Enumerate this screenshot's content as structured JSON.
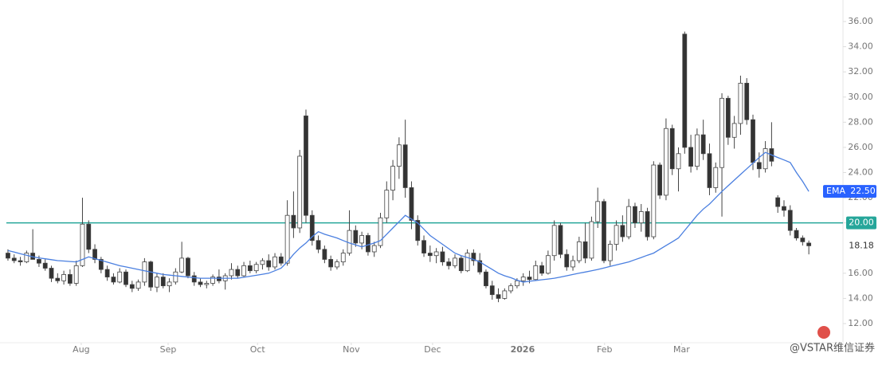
{
  "chart_data": {
    "type": "candlestick",
    "open": [
      17.6,
      17.2,
      17.0,
      16.9,
      17.6,
      17.1,
      16.8,
      16.4,
      15.6,
      15.4,
      15.9,
      15.2,
      16.6,
      19.9,
      17.9,
      17.1,
      16.3,
      15.7,
      15.3,
      16.1,
      15.1,
      14.8,
      15.3,
      16.9,
      14.9,
      15.7,
      15.0,
      15.3,
      16.1,
      17.2,
      15.8,
      15.3,
      15.1,
      15.2,
      15.7,
      15.4,
      15.8,
      16.3,
      15.8,
      16.6,
      16.2,
      16.7,
      17.0,
      16.5,
      17.3,
      16.8,
      20.6,
      19.6,
      28.5,
      20.6,
      18.6,
      17.9,
      17.1,
      16.5,
      16.9,
      17.6,
      19.4,
      18.4,
      19.0,
      17.7,
      18.2,
      20.4,
      22.6,
      24.5,
      26.2,
      22.8,
      20.2,
      18.6,
      17.6,
      17.4,
      17.7,
      16.9,
      16.6,
      17.2,
      16.2,
      17.6,
      17.0,
      16.1,
      15.0,
      14.3,
      14.0,
      14.6,
      15.0,
      15.4,
      15.7,
      15.5,
      16.6,
      16.0,
      17.4,
      19.8,
      17.5,
      16.5,
      17.0,
      18.5,
      17.2,
      20.1,
      21.7,
      17.0,
      18.3,
      19.8,
      18.9,
      21.3,
      20.0,
      20.9,
      18.9,
      24.6,
      22.2,
      27.5,
      24.3,
      35.0,
      26.0,
      24.5,
      27.0,
      25.5,
      22.8,
      24.4,
      29.9,
      26.8,
      27.9,
      31.1,
      28.2,
      24.8,
      24.3,
      25.9,
      22.0,
      21.3,
      21.0,
      19.4,
      18.8,
      18.4
    ],
    "high": [
      17.9,
      17.5,
      17.3,
      17.8,
      19.5,
      17.4,
      17.1,
      16.6,
      16.0,
      16.2,
      16.3,
      17.0,
      22.0,
      20.2,
      18.3,
      17.3,
      16.6,
      16.0,
      16.4,
      16.3,
      15.4,
      15.5,
      17.2,
      17.0,
      16.0,
      16.0,
      15.6,
      16.4,
      18.5,
      17.3,
      16.1,
      15.6,
      15.4,
      15.9,
      16.3,
      16.0,
      16.8,
      16.6,
      16.9,
      17.0,
      16.9,
      17.2,
      17.5,
      17.6,
      17.6,
      21.8,
      22.5,
      25.8,
      29.0,
      21.0,
      19.0,
      18.2,
      17.4,
      17.1,
      17.9,
      21.0,
      19.8,
      19.3,
      19.2,
      18.5,
      20.8,
      23.3,
      25.0,
      26.8,
      28.2,
      23.3,
      20.6,
      19.0,
      18.2,
      18.0,
      18.1,
      17.2,
      17.5,
      17.4,
      17.9,
      17.9,
      17.6,
      16.3,
      15.4,
      14.8,
      14.8,
      15.2,
      15.6,
      16.0,
      16.2,
      17.0,
      16.9,
      17.8,
      20.2,
      20.0,
      17.9,
      17.4,
      18.9,
      20.0,
      20.5,
      22.8,
      21.9,
      18.6,
      20.2,
      20.6,
      21.9,
      21.6,
      21.5,
      21.2,
      24.9,
      24.8,
      28.3,
      27.8,
      26.0,
      35.2,
      27.0,
      27.5,
      28.2,
      26.3,
      24.8,
      30.3,
      30.1,
      28.5,
      31.7,
      31.5,
      28.6,
      25.6,
      26.5,
      28.0,
      22.2,
      21.8,
      21.4,
      19.6,
      19.0,
      18.6
    ],
    "low": [
      17.0,
      16.8,
      16.6,
      16.8,
      17.3,
      16.5,
      16.2,
      15.3,
      15.2,
      15.1,
      15.0,
      15.0,
      16.5,
      17.6,
      16.8,
      16.0,
      15.4,
      15.1,
      15.2,
      14.9,
      14.5,
      14.6,
      15.0,
      14.6,
      14.5,
      14.8,
      14.5,
      15.1,
      16.0,
      15.6,
      15.0,
      14.9,
      14.8,
      15.0,
      15.2,
      14.7,
      15.5,
      15.6,
      15.7,
      16.0,
      16.0,
      16.3,
      16.2,
      16.3,
      16.6,
      16.6,
      18.8,
      19.2,
      20.0,
      18.2,
      17.6,
      16.8,
      16.2,
      16.3,
      16.6,
      17.4,
      18.1,
      17.9,
      17.4,
      17.3,
      18.0,
      20.0,
      21.8,
      23.5,
      22.0,
      19.5,
      18.2,
      17.3,
      16.9,
      16.8,
      16.6,
      16.3,
      16.4,
      16.0,
      16.1,
      16.6,
      15.9,
      14.8,
      13.9,
      13.7,
      13.9,
      14.4,
      14.8,
      15.0,
      15.2,
      15.4,
      15.8,
      15.9,
      17.0,
      17.2,
      16.2,
      16.2,
      16.8,
      16.8,
      17.0,
      19.6,
      16.8,
      16.6,
      17.8,
      18.5,
      18.7,
      19.6,
      19.3,
      18.6,
      18.7,
      21.9,
      21.8,
      23.8,
      22.5,
      25.5,
      24.0,
      24.2,
      25.0,
      22.2,
      22.4,
      20.5,
      26.2,
      25.9,
      27.0,
      27.8,
      24.2,
      23.6,
      24.0,
      24.5,
      20.8,
      20.5,
      19.0,
      18.6,
      18.2,
      17.5
    ],
    "close": [
      17.2,
      17.0,
      16.9,
      17.6,
      17.1,
      16.8,
      16.4,
      15.6,
      15.4,
      15.9,
      15.2,
      16.6,
      19.9,
      17.9,
      17.1,
      16.3,
      15.7,
      15.3,
      16.1,
      15.1,
      14.8,
      15.3,
      16.9,
      14.9,
      15.7,
      15.0,
      15.3,
      16.1,
      17.2,
      15.8,
      15.3,
      15.1,
      15.2,
      15.7,
      15.4,
      15.8,
      16.3,
      15.8,
      16.6,
      16.2,
      16.7,
      17.0,
      16.5,
      17.3,
      16.8,
      20.6,
      19.6,
      25.3,
      20.6,
      18.6,
      17.9,
      17.1,
      16.5,
      16.9,
      17.6,
      19.4,
      18.4,
      19.0,
      17.7,
      18.2,
      20.4,
      22.6,
      24.5,
      26.2,
      22.8,
      20.2,
      18.6,
      17.6,
      17.4,
      17.7,
      16.9,
      16.6,
      17.2,
      16.2,
      17.6,
      17.0,
      16.1,
      15.0,
      14.3,
      14.0,
      14.6,
      15.0,
      15.4,
      15.7,
      15.5,
      16.6,
      16.0,
      17.4,
      19.8,
      17.5,
      16.5,
      17.0,
      18.5,
      17.2,
      20.1,
      21.7,
      17.0,
      18.3,
      19.8,
      18.9,
      21.3,
      20.0,
      20.9,
      18.9,
      24.6,
      22.2,
      27.5,
      24.3,
      25.5,
      26.0,
      24.5,
      27.0,
      25.5,
      22.8,
      24.4,
      29.9,
      26.8,
      27.9,
      31.1,
      28.2,
      24.8,
      24.3,
      25.9,
      24.9,
      21.3,
      21.0,
      19.4,
      18.8,
      18.5,
      18.18
    ],
    "up_color": "#ffffff",
    "down_color": "#333333",
    "wick_color": "#444444",
    "ema": {
      "name": "EMA",
      "color": "#4a7fe0",
      "value_label": "22.50",
      "values": [
        17.8,
        17.68,
        17.55,
        17.43,
        17.3,
        17.22,
        17.15,
        17.08,
        17.0,
        16.97,
        16.93,
        16.9,
        17.1,
        17.3,
        17.16,
        17.02,
        16.88,
        16.74,
        16.6,
        16.5,
        16.4,
        16.3,
        16.2,
        16.1,
        16.0,
        15.9,
        15.85,
        15.8,
        15.75,
        15.7,
        15.65,
        15.6,
        15.6,
        15.6,
        15.6,
        15.6,
        15.6,
        15.6,
        15.68,
        15.76,
        15.84,
        15.92,
        16.0,
        16.2,
        16.4,
        16.9,
        17.5,
        18.0,
        18.4,
        18.9,
        19.3,
        19.1,
        18.95,
        18.8,
        18.6,
        18.4,
        18.25,
        18.1,
        18.25,
        18.4,
        18.6,
        19.1,
        19.6,
        20.1,
        20.6,
        20.3,
        20.0,
        19.5,
        19.0,
        18.65,
        18.3,
        17.95,
        17.6,
        17.4,
        17.25,
        17.1,
        16.9,
        16.6,
        16.3,
        16.0,
        15.8,
        15.65,
        15.45,
        15.3,
        15.36,
        15.42,
        15.48,
        15.54,
        15.6,
        15.7,
        15.8,
        15.9,
        16.0,
        16.1,
        16.2,
        16.3,
        16.42,
        16.54,
        16.66,
        16.78,
        16.9,
        17.08,
        17.25,
        17.43,
        17.6,
        17.9,
        18.2,
        18.5,
        18.8,
        19.4,
        20.0,
        20.6,
        21.1,
        21.5,
        22.0,
        22.5,
        22.95,
        23.4,
        23.85,
        24.3,
        24.75,
        25.2,
        25.6,
        25.4,
        25.2,
        25.0,
        24.8,
        24.0,
        23.3,
        22.5
      ]
    },
    "hline": {
      "value": 20,
      "label": "20.00",
      "color": "#26a69a"
    },
    "ylim": [
      10.48,
      37.71
    ],
    "yticks": [
      {
        "value": 12,
        "label": "12.00"
      },
      {
        "value": 14,
        "label": "14.00"
      },
      {
        "value": 16,
        "label": "16.00"
      },
      {
        "value": 20,
        "label": "20.00"
      },
      {
        "value": 22,
        "label": "22.00"
      },
      {
        "value": 24,
        "label": "24.00"
      },
      {
        "value": 26,
        "label": "26.00"
      },
      {
        "value": 28,
        "label": "28.00"
      },
      {
        "value": 30,
        "label": "30.00"
      },
      {
        "value": 32,
        "label": "32.00"
      },
      {
        "value": 34,
        "label": "34.00"
      },
      {
        "value": 36,
        "label": "36.00"
      }
    ],
    "xlim": [
      -1.28,
      134.5
    ],
    "xticks": [
      {
        "value": 11.8,
        "label": "Aug"
      },
      {
        "value": 25.8,
        "label": "Sep"
      },
      {
        "value": 40.2,
        "label": "Oct"
      },
      {
        "value": 55.3,
        "label": "Nov"
      },
      {
        "value": 68.4,
        "label": "Dec"
      },
      {
        "value": 82.9,
        "label": "2026"
      },
      {
        "value": 96.1,
        "label": "Feb"
      },
      {
        "value": 108.5,
        "label": "Mar"
      }
    ],
    "watermark": "@VSTAR维信证券"
  }
}
